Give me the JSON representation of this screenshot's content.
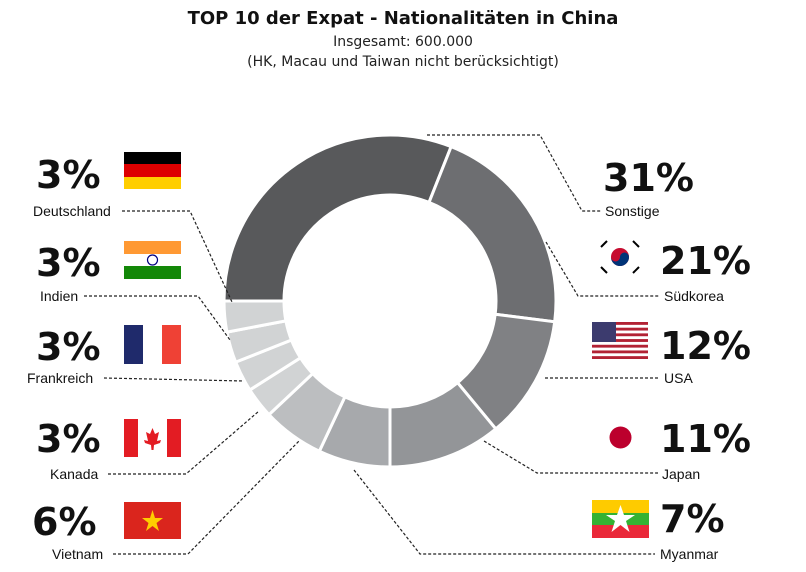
{
  "chart_data": {
    "type": "pie",
    "donut": true,
    "title": "TOP 10 der Expat - Nationalitäten in China",
    "subtitle": "Insgesamt: 600.000",
    "note": "(HK, Macau und Taiwan nicht berücksichtigt)",
    "slices": [
      {
        "label": "Sonstige",
        "value": 31,
        "pct_label": "31%",
        "color": "#58595b"
      },
      {
        "label": "Südkorea",
        "value": 21,
        "pct_label": "21%",
        "color": "#6d6e71"
      },
      {
        "label": "USA",
        "value": 12,
        "pct_label": "12%",
        "color": "#808184"
      },
      {
        "label": "Japan",
        "value": 11,
        "pct_label": "11%",
        "color": "#939598"
      },
      {
        "label": "Myanmar",
        "value": 7,
        "pct_label": "7%",
        "color": "#a7a9ac"
      },
      {
        "label": "Vietnam",
        "value": 6,
        "pct_label": "6%",
        "color": "#bcbec0"
      },
      {
        "label": "Kanada",
        "value": 3,
        "pct_label": "3%",
        "color": "#d1d3d4"
      },
      {
        "label": "Frankreich",
        "value": 3,
        "pct_label": "3%",
        "color": "#d1d3d4"
      },
      {
        "label": "Indien",
        "value": 3,
        "pct_label": "3%",
        "color": "#d1d3d4"
      },
      {
        "label": "Deutschland",
        "value": 3,
        "pct_label": "3%",
        "color": "#d1d3d4"
      }
    ]
  }
}
